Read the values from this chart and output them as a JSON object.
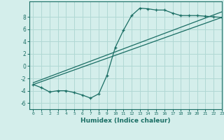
{
  "background_color": "#d4eeeb",
  "grid_color": "#b0d8d4",
  "line_color": "#1a6e64",
  "xlabel": "Humidex (Indice chaleur)",
  "ylim": [
    -7,
    10.5
  ],
  "xlim": [
    -0.5,
    23
  ],
  "yticks": [
    -6,
    -4,
    -2,
    0,
    2,
    4,
    6,
    8
  ],
  "xticks": [
    0,
    1,
    2,
    3,
    4,
    5,
    6,
    7,
    8,
    9,
    10,
    11,
    12,
    13,
    14,
    15,
    16,
    17,
    18,
    19,
    20,
    21,
    22,
    23
  ],
  "line1_x": [
    0,
    1,
    2,
    3,
    4,
    5,
    6,
    7,
    8,
    9,
    10,
    11,
    12,
    13,
    14,
    15,
    16,
    17,
    18,
    19,
    20,
    21,
    22,
    23
  ],
  "line1_y": [
    -3.0,
    -3.5,
    -4.2,
    -4.0,
    -4.0,
    -4.3,
    -4.7,
    -5.2,
    -4.5,
    -1.5,
    3.0,
    5.8,
    8.2,
    9.4,
    9.3,
    9.1,
    9.1,
    8.6,
    8.2,
    8.2,
    8.2,
    8.1,
    8.0,
    7.9
  ],
  "line2_x": [
    0,
    23
  ],
  "line2_y": [
    -3.0,
    7.9
  ],
  "line3_x": [
    0,
    23
  ],
  "line3_y": [
    -2.7,
    8.8
  ]
}
